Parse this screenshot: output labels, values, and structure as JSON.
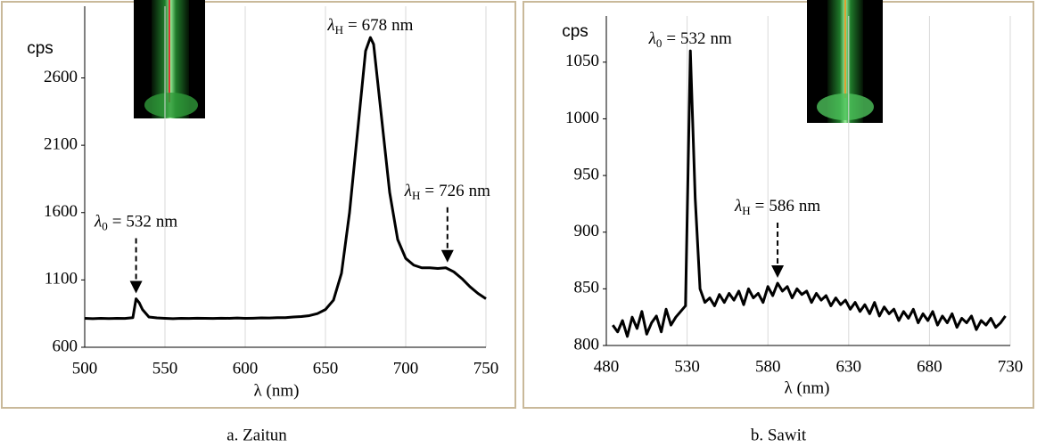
{
  "chart_data": [
    {
      "type": "line",
      "caption": "a. Zaitun",
      "y_label": "cps",
      "x_label": "λ (nm)",
      "x": [
        500,
        505,
        510,
        515,
        520,
        525,
        530,
        532,
        534,
        536,
        540,
        545,
        550,
        555,
        560,
        565,
        570,
        575,
        580,
        585,
        590,
        595,
        600,
        605,
        610,
        615,
        620,
        625,
        630,
        635,
        640,
        645,
        650,
        655,
        660,
        665,
        670,
        675,
        678,
        680,
        685,
        690,
        695,
        700,
        705,
        710,
        715,
        720,
        725,
        730,
        735,
        740,
        745,
        750
      ],
      "series": [
        {
          "color": "#000000",
          "values": [
            815,
            812,
            815,
            813,
            815,
            814,
            820,
            960,
            930,
            880,
            825,
            818,
            815,
            812,
            815,
            814,
            816,
            815,
            814,
            816,
            815,
            817,
            815,
            816,
            818,
            817,
            820,
            820,
            825,
            828,
            835,
            850,
            880,
            950,
            1150,
            1600,
            2200,
            2800,
            2900,
            2850,
            2300,
            1750,
            1400,
            1260,
            1210,
            1190,
            1190,
            1185,
            1190,
            1160,
            1110,
            1050,
            1000,
            960
          ]
        }
      ],
      "xlim": [
        500,
        750
      ],
      "xticks": [
        500,
        550,
        600,
        650,
        700,
        750
      ],
      "ylim": [
        600,
        3000
      ],
      "yticks": [
        600,
        1100,
        1600,
        2100,
        2600
      ],
      "grid": "x",
      "annotations": [
        {
          "symbol": "λ",
          "subscript": "0",
          "relation": "=",
          "value": 532,
          "unit": "nm",
          "arrow": true
        },
        {
          "symbol": "λ",
          "subscript": "H",
          "relation": "=",
          "value": 678,
          "unit": "nm",
          "arrow": false
        },
        {
          "symbol": "λ",
          "subscript": "H",
          "relation": "=",
          "value": 726,
          "unit": "nm",
          "arrow": true
        }
      ]
    },
    {
      "type": "line",
      "caption": "b. Sawit",
      "y_label": "cps",
      "x_label": "λ (nm)",
      "x": [
        484,
        487,
        490,
        493,
        496,
        499,
        502,
        505,
        508,
        511,
        514,
        517,
        520,
        523,
        526,
        529,
        532,
        535,
        538,
        541,
        544,
        547,
        550,
        553,
        556,
        559,
        562,
        565,
        568,
        571,
        574,
        577,
        580,
        583,
        586,
        589,
        592,
        595,
        598,
        601,
        604,
        607,
        610,
        613,
        616,
        619,
        622,
        625,
        628,
        631,
        634,
        637,
        640,
        643,
        646,
        649,
        652,
        655,
        658,
        661,
        664,
        667,
        670,
        673,
        676,
        679,
        682,
        685,
        688,
        691,
        694,
        697,
        700,
        703,
        706,
        709,
        712,
        715,
        718,
        721,
        724,
        727
      ],
      "series": [
        {
          "color": "#000000",
          "values": [
            818,
            812,
            822,
            808,
            825,
            815,
            830,
            810,
            820,
            826,
            812,
            832,
            818,
            825,
            830,
            835,
            1060,
            930,
            850,
            838,
            842,
            835,
            845,
            838,
            846,
            840,
            848,
            836,
            850,
            842,
            846,
            838,
            852,
            844,
            855,
            848,
            852,
            842,
            850,
            845,
            848,
            838,
            846,
            840,
            844,
            835,
            842,
            836,
            840,
            832,
            838,
            830,
            836,
            828,
            838,
            826,
            834,
            828,
            832,
            822,
            830,
            824,
            832,
            820,
            828,
            822,
            830,
            818,
            826,
            820,
            828,
            816,
            824,
            820,
            826,
            814,
            822,
            818,
            824,
            816,
            820,
            826
          ]
        }
      ],
      "xlim": [
        480,
        730
      ],
      "xticks": [
        480,
        530,
        580,
        630,
        680,
        730
      ],
      "ylim": [
        800,
        1075
      ],
      "yticks": [
        800,
        850,
        900,
        950,
        1000,
        1050
      ],
      "grid": "x",
      "annotations": [
        {
          "symbol": "λ",
          "subscript": "0",
          "relation": "=",
          "value": 532,
          "unit": "nm",
          "arrow": false
        },
        {
          "symbol": "λ",
          "subscript": "H",
          "relation": "=",
          "value": 586,
          "unit": "nm",
          "arrow": true
        }
      ]
    }
  ]
}
